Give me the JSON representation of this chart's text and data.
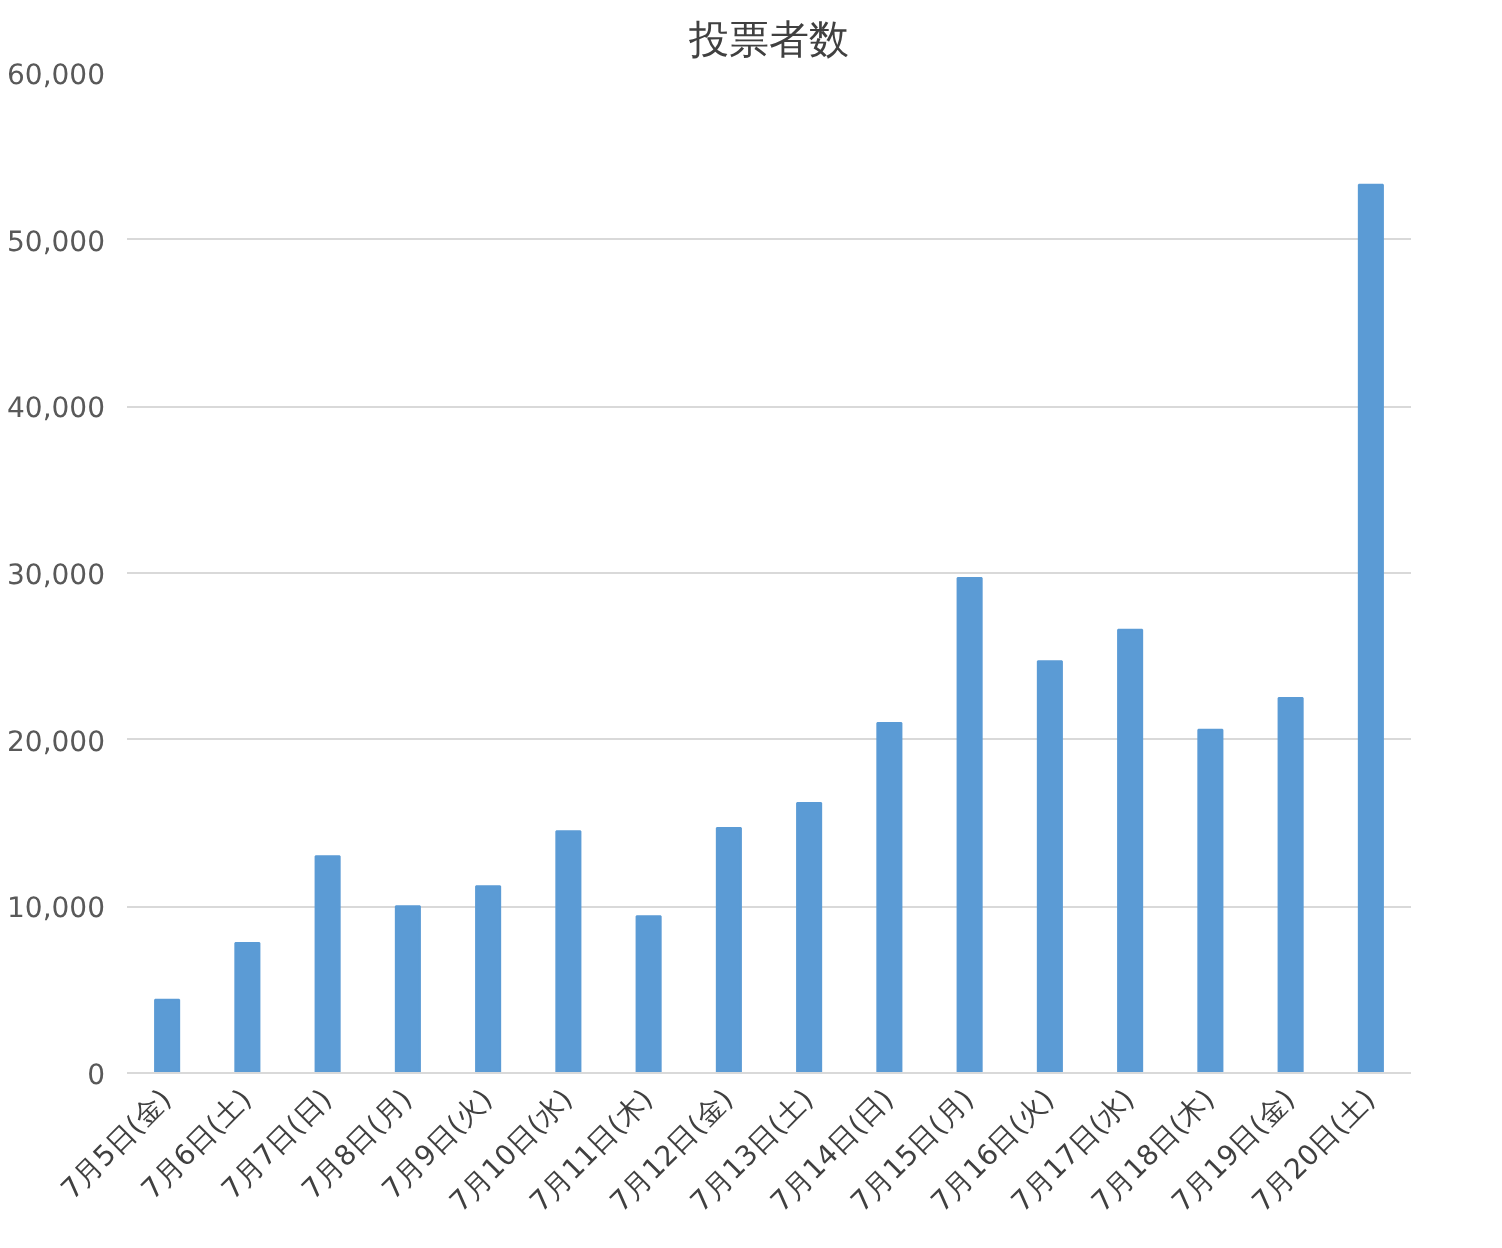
{
  "chart_data": {
    "type": "bar",
    "title": "投票者数",
    "categories": [
      "7月5日(金)",
      "7月6日(土)",
      "7月7日(日)",
      "7月8日(月)",
      "7月9日(火)",
      "7月10日(水)",
      "7月11日(木)",
      "7月12日(金)",
      "7月13日(土)",
      "7月14日(日)",
      "7月15日(月)",
      "7月16日(火)",
      "7月17日(水)",
      "7月18日(木)",
      "7月19日(金)",
      "7月20日(土)"
    ],
    "values": [
      4400,
      7800,
      13000,
      10000,
      11200,
      14500,
      9400,
      14700,
      16200,
      21000,
      29700,
      24700,
      26600,
      20600,
      22500,
      53300
    ],
    "color": "#5b9bd5",
    "ylim": [
      0,
      60000
    ],
    "yticks": [
      {
        "value": 0,
        "label": "0"
      },
      {
        "value": 10000,
        "label": "10,000"
      },
      {
        "value": 20000,
        "label": "20,000"
      },
      {
        "value": 30000,
        "label": "30,000"
      },
      {
        "value": 40000,
        "label": "40,000"
      },
      {
        "value": 50000,
        "label": "50,000"
      },
      {
        "value": 60000,
        "label": "60,000"
      }
    ],
    "grid": "y"
  }
}
